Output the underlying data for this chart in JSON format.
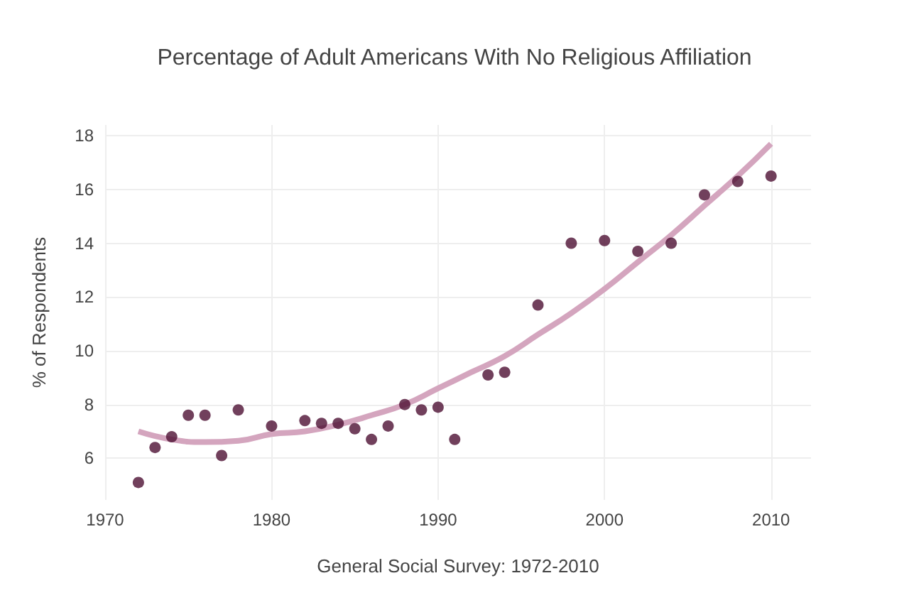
{
  "chart_data": {
    "type": "scatter",
    "title": "Percentage of Adult Americans With No Religious Affiliation",
    "xlabel": "General Social Survey: 1972-2010",
    "ylabel": "% of Respondents",
    "series": [
      {
        "color": "#4d1033",
        "marker": "circle",
        "x": [
          1972,
          1973,
          1974,
          1975,
          1976,
          1977,
          1978,
          1980,
          1982,
          1983,
          1984,
          1985,
          1986,
          1987,
          1988,
          1989,
          1990,
          1991,
          1993,
          1994,
          1996,
          1998,
          2000,
          2002,
          2004,
          2006,
          2008,
          2010
        ],
        "values": [
          5.1,
          6.4,
          6.8,
          7.6,
          7.6,
          6.1,
          7.8,
          7.2,
          7.4,
          7.3,
          7.3,
          7.1,
          6.7,
          7.2,
          8.0,
          7.8,
          7.9,
          6.7,
          9.1,
          9.2,
          11.7,
          14.0,
          14.1,
          13.7,
          14.0,
          15.8,
          16.3,
          16.5
        ]
      },
      {
        "type": "line",
        "color": "#d4a5be",
        "x": [
          1972,
          1974,
          1976,
          1978,
          1980,
          1982,
          1984,
          1986,
          1988,
          1990,
          1992,
          1994,
          1996,
          1998,
          2000,
          2002,
          2004,
          2006,
          2008,
          2010
        ],
        "values": [
          7.0,
          6.7,
          6.6,
          6.65,
          6.9,
          7.0,
          7.25,
          7.6,
          8.0,
          8.6,
          9.2,
          9.8,
          10.6,
          11.4,
          12.3,
          13.3,
          14.3,
          15.4,
          16.5,
          17.7
        ]
      }
    ],
    "xlim": [
      1970,
      2012.4
    ],
    "xticks": [
      1970,
      1980,
      1990,
      2000,
      2010
    ],
    "ylim": [
      4.45,
      18.4
    ],
    "yticks": [
      6,
      8,
      10,
      12,
      14,
      16,
      18
    ],
    "grid": true
  }
}
